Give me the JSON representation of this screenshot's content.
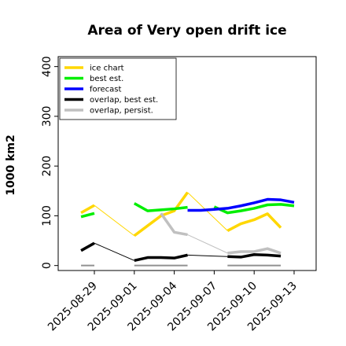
{
  "chart_data": {
    "type": "line",
    "title": "Area of Very open drift ice",
    "ylabel": "1000 km2",
    "xlabel": "",
    "ylim": [
      -10,
      420
    ],
    "yticks": [
      0,
      100,
      200,
      300,
      400
    ],
    "xlim": [
      "2025-08-27",
      "2025-09-13"
    ],
    "xticks": [
      "2025-08-29",
      "2025-09-01",
      "2025-09-04",
      "2025-09-07",
      "2025-09-10",
      "2025-09-13"
    ],
    "highlight_tick": "2025-09-04",
    "highlight_color": "#228b22",
    "legend_position": "upper left",
    "series": [
      {
        "name": "ice chart",
        "color": "#FFD700",
        "style": "segments",
        "points": [
          {
            "x": "2025-08-28",
            "y": 106
          },
          {
            "x": "2025-08-29",
            "y": 121
          },
          {
            "x": "2025-09-01",
            "y": 60
          },
          {
            "x": "2025-09-02",
            "y": 80
          },
          {
            "x": "2025-09-03",
            "y": 100
          },
          {
            "x": "2025-09-04",
            "y": 110
          },
          {
            "x": "2025-09-05",
            "y": 147
          },
          {
            "x": "2025-09-08",
            "y": 70
          },
          {
            "x": "2025-09-09",
            "y": 84
          },
          {
            "x": "2025-09-10",
            "y": 92
          },
          {
            "x": "2025-09-11",
            "y": 104
          },
          {
            "x": "2025-09-12",
            "y": 76
          }
        ]
      },
      {
        "name": "best est.",
        "color": "#00EE00",
        "style": "segments",
        "points": [
          {
            "x": "2025-08-28",
            "y": 98
          },
          {
            "x": "2025-08-29",
            "y": 105
          },
          {
            "x": "2025-09-01",
            "y": 125
          },
          {
            "x": "2025-09-02",
            "y": 110
          },
          {
            "x": "2025-09-03",
            "y": 112
          },
          {
            "x": "2025-09-04",
            "y": 114
          },
          {
            "x": "2025-09-05",
            "y": 117
          },
          {
            "x": "2025-09-07",
            "y": 118
          },
          {
            "x": "2025-09-08",
            "y": 106
          },
          {
            "x": "2025-09-09",
            "y": 110
          },
          {
            "x": "2025-09-10",
            "y": 115
          },
          {
            "x": "2025-09-11",
            "y": 122
          },
          {
            "x": "2025-09-12",
            "y": 123
          },
          {
            "x": "2025-09-13",
            "y": 120
          }
        ]
      },
      {
        "name": "forecast",
        "color": "#0000FF",
        "style": "segments",
        "points": [
          {
            "x": "2025-09-05",
            "y": 111
          },
          {
            "x": "2025-09-06",
            "y": 111
          },
          {
            "x": "2025-09-07",
            "y": 113
          },
          {
            "x": "2025-09-08",
            "y": 115
          },
          {
            "x": "2025-09-09",
            "y": 120
          },
          {
            "x": "2025-09-10",
            "y": 126
          },
          {
            "x": "2025-09-11",
            "y": 133
          },
          {
            "x": "2025-09-12",
            "y": 132
          },
          {
            "x": "2025-09-13",
            "y": 127
          }
        ]
      },
      {
        "name": "overlap, best est.",
        "color": "#000000",
        "style": "segments",
        "points": [
          {
            "x": "2025-08-28",
            "y": 30
          },
          {
            "x": "2025-08-29",
            "y": 45
          },
          {
            "x": "2025-09-01",
            "y": 10
          },
          {
            "x": "2025-09-02",
            "y": 16
          },
          {
            "x": "2025-09-03",
            "y": 16
          },
          {
            "x": "2025-09-04",
            "y": 15
          },
          {
            "x": "2025-09-05",
            "y": 21
          },
          {
            "x": "2025-09-08",
            "y": 18
          },
          {
            "x": "2025-09-09",
            "y": 17
          },
          {
            "x": "2025-09-10",
            "y": 22
          },
          {
            "x": "2025-09-11",
            "y": 21
          },
          {
            "x": "2025-09-12",
            "y": 19
          }
        ]
      },
      {
        "name": "overlap, persist.",
        "color": "#C0C0C0",
        "style": "segments",
        "points": [
          {
            "x": "2025-09-03",
            "y": 105
          },
          {
            "x": "2025-09-04",
            "y": 67
          },
          {
            "x": "2025-09-05",
            "y": 62
          },
          {
            "x": "2025-09-08",
            "y": 25
          },
          {
            "x": "2025-09-09",
            "y": 28
          },
          {
            "x": "2025-09-10",
            "y": 28
          },
          {
            "x": "2025-09-11",
            "y": 34
          },
          {
            "x": "2025-09-12",
            "y": 25
          }
        ]
      }
    ],
    "connectors": [
      {
        "series": "ice chart",
        "from": {
          "x": "2025-08-29",
          "y": 121
        },
        "to": {
          "x": "2025-09-01",
          "y": 60
        }
      },
      {
        "series": "ice chart",
        "from": {
          "x": "2025-09-05",
          "y": 147
        },
        "to": {
          "x": "2025-09-08",
          "y": 70
        }
      },
      {
        "series": "overlap, best est.",
        "from": {
          "x": "2025-08-29",
          "y": 45
        },
        "to": {
          "x": "2025-09-01",
          "y": 10
        }
      },
      {
        "series": "overlap, best est.",
        "from": {
          "x": "2025-09-05",
          "y": 21
        },
        "to": {
          "x": "2025-09-08",
          "y": 18
        }
      },
      {
        "series": "overlap, persist.",
        "from": {
          "x": "2025-09-05",
          "y": 62
        },
        "to": {
          "x": "2025-09-08",
          "y": 25
        }
      }
    ],
    "zero_segments": [
      {
        "from": "2025-08-28",
        "to": "2025-08-29"
      },
      {
        "from": "2025-09-01",
        "to": "2025-09-05"
      },
      {
        "from": "2025-09-08",
        "to": "2025-09-12"
      }
    ],
    "zero_segment_color": "#909090"
  }
}
